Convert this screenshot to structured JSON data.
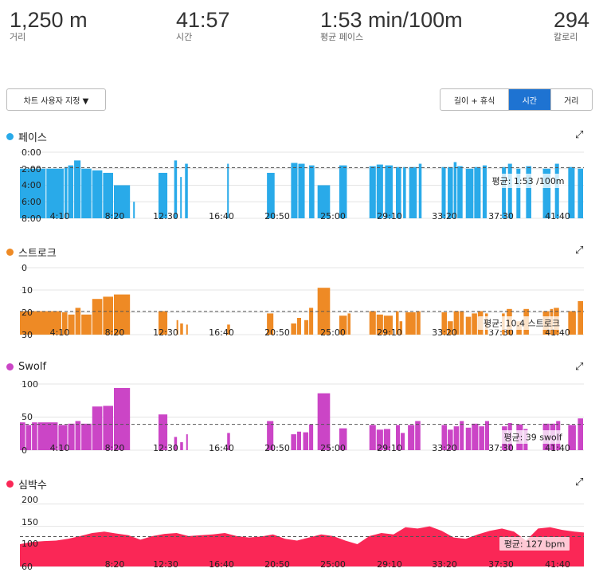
{
  "stats": [
    {
      "value": "1,250 m",
      "label": "거리"
    },
    {
      "value": "41:57",
      "label": "시간"
    },
    {
      "value": "1:53 min/100m",
      "label": "평균 페이스"
    },
    {
      "value": "294",
      "label": "칼로리"
    }
  ],
  "controls": {
    "custom_chart": "차트 사용자 지정 ▼",
    "segments": [
      "길이 + 휴식",
      "시간",
      "거리"
    ],
    "active_segment": "시간"
  },
  "x_tick_labels": [
    "4:10",
    "8:20",
    "12:30",
    "16:40",
    "20:50",
    "25:00",
    "29:10",
    "33:20",
    "37:30",
    "41:40"
  ],
  "chart_data": [
    {
      "type": "bar",
      "title": "페이스",
      "color": "#29aae9",
      "y_tick_labels": [
        "0:00",
        "2:00",
        "4:00",
        "6:00",
        "8:00"
      ],
      "ylim": [
        0,
        8
      ],
      "y_inverted": true,
      "avg_value": 1.88,
      "avg_label": "평균: 1:53 /100m",
      "x_unit": "min",
      "bars": [
        [
          0,
          2.2,
          2.0
        ],
        [
          2.2,
          3.7,
          2.0
        ],
        [
          3.7,
          4.0,
          1.8
        ],
        [
          4.0,
          4.5,
          1.6
        ],
        [
          4.5,
          5.1,
          1.0
        ],
        [
          5.1,
          6.0,
          2.0
        ],
        [
          6.0,
          6.9,
          2.2
        ],
        [
          6.9,
          7.8,
          2.5
        ],
        [
          7.8,
          9.2,
          4.0
        ],
        [
          9.4,
          9.5,
          6.0
        ],
        [
          11.5,
          12.3,
          2.5
        ],
        [
          12.8,
          13.1,
          1.0
        ],
        [
          13.3,
          13.4,
          3.0
        ],
        [
          13.7,
          14.0,
          1.4
        ],
        [
          17.2,
          17.4,
          1.4
        ],
        [
          20.5,
          21.2,
          2.5
        ],
        [
          22.5,
          23.1,
          1.3
        ],
        [
          23.1,
          23.7,
          1.4
        ],
        [
          24.0,
          24.5,
          1.6
        ],
        [
          24.7,
          25.8,
          4.0
        ],
        [
          26.5,
          27.2,
          1.6
        ],
        [
          29.0,
          29.6,
          1.7
        ],
        [
          29.6,
          30.2,
          1.5
        ],
        [
          30.3,
          31.0,
          1.6
        ],
        [
          31.2,
          31.7,
          1.8
        ],
        [
          31.8,
          32.1,
          1.8
        ],
        [
          32.3,
          33.0,
          1.8
        ],
        [
          33.1,
          33.4,
          1.4
        ],
        [
          35.0,
          35.4,
          1.8
        ],
        [
          35.5,
          36.0,
          1.8
        ],
        [
          36.0,
          36.3,
          1.2
        ],
        [
          36.3,
          36.8,
          1.7
        ],
        [
          37.0,
          37.7,
          2.0
        ],
        [
          37.7,
          38.3,
          1.8
        ],
        [
          38.4,
          38.8,
          1.6
        ],
        [
          40.0,
          40.4,
          1.8
        ],
        [
          40.5,
          40.9,
          1.4
        ],
        [
          41.2,
          41.6,
          2.0
        ],
        [
          42.0,
          42.5,
          1.7
        ],
        [
          43.4,
          44.1,
          2.0
        ],
        [
          44.4,
          44.8,
          1.4
        ],
        [
          45.5,
          46.1,
          1.8
        ],
        [
          46.3,
          46.8,
          2.0
        ]
      ]
    },
    {
      "type": "bar",
      "title": "스트로크",
      "color": "#ee8a25",
      "y_tick_labels": [
        "0",
        "10",
        "20",
        "30"
      ],
      "ylim": [
        0,
        30
      ],
      "avg_value": 10.4,
      "avg_label": "평균: 10.4 스트로크",
      "x_unit": "min",
      "bars": [
        [
          0,
          3.5,
          10.5
        ],
        [
          3.5,
          4.0,
          10
        ],
        [
          4.0,
          4.6,
          9
        ],
        [
          4.6,
          5.1,
          12
        ],
        [
          5.1,
          6.0,
          9
        ],
        [
          6.0,
          6.9,
          16
        ],
        [
          6.9,
          7.8,
          17
        ],
        [
          7.8,
          9.2,
          18
        ],
        [
          11.5,
          12.3,
          10.5
        ],
        [
          13.0,
          13.2,
          6.5
        ],
        [
          13.3,
          13.6,
          5
        ],
        [
          13.8,
          14.0,
          4.5
        ],
        [
          17.2,
          17.5,
          4.5
        ],
        [
          20.5,
          21.1,
          9.5
        ],
        [
          22.5,
          23.0,
          5
        ],
        [
          23.0,
          23.4,
          7.5
        ],
        [
          23.6,
          24.0,
          6.5
        ],
        [
          24.0,
          24.4,
          12
        ],
        [
          24.7,
          25.8,
          21
        ],
        [
          26.5,
          27.2,
          8.5
        ],
        [
          27.2,
          27.5,
          9.5
        ],
        [
          29.0,
          29.6,
          10.5
        ],
        [
          29.6,
          30.2,
          9
        ],
        [
          30.2,
          31.0,
          8.5
        ],
        [
          31.2,
          31.5,
          10.5
        ],
        [
          31.5,
          31.8,
          6
        ],
        [
          32.0,
          32.9,
          10
        ],
        [
          32.9,
          33.3,
          10.5
        ],
        [
          35.0,
          35.5,
          10
        ],
        [
          35.5,
          36.0,
          6
        ],
        [
          36.0,
          36.5,
          10.5
        ],
        [
          36.5,
          36.9,
          10.5
        ],
        [
          37.0,
          37.5,
          8
        ],
        [
          37.5,
          38.0,
          9.5
        ],
        [
          38.0,
          38.5,
          10.5
        ],
        [
          38.6,
          38.9,
          9.5
        ],
        [
          40.0,
          40.3,
          9.5
        ],
        [
          40.4,
          40.9,
          11.5
        ],
        [
          41.2,
          41.7,
          6
        ],
        [
          41.8,
          42.3,
          11.5
        ],
        [
          43.4,
          44.0,
          10.5
        ],
        [
          44.0,
          44.3,
          11.5
        ],
        [
          44.3,
          44.8,
          12
        ],
        [
          45.5,
          46.2,
          10.5
        ],
        [
          46.3,
          46.8,
          15
        ]
      ]
    },
    {
      "type": "bar",
      "title": "Swolf",
      "color": "#cb45c6",
      "y_tick_labels": [
        "0",
        "50",
        "100"
      ],
      "ylim": [
        0,
        100
      ],
      "avg_value": 39,
      "avg_label": "평균: 39 swolf",
      "x_unit": "min",
      "bars": [
        [
          0,
          0.5,
          42
        ],
        [
          0.5,
          1.0,
          38
        ],
        [
          1.0,
          1.5,
          42
        ],
        [
          1.5,
          3.2,
          42
        ],
        [
          3.2,
          4.0,
          38
        ],
        [
          4.0,
          4.6,
          40
        ],
        [
          4.6,
          5.1,
          44
        ],
        [
          5.1,
          6.0,
          40
        ],
        [
          6.0,
          6.9,
          66
        ],
        [
          6.9,
          7.8,
          67
        ],
        [
          7.8,
          9.2,
          94
        ],
        [
          11.5,
          12.3,
          54
        ],
        [
          12.8,
          13.1,
          20
        ],
        [
          13.3,
          13.6,
          12
        ],
        [
          13.8,
          14.0,
          24
        ],
        [
          17.2,
          17.5,
          26
        ],
        [
          20.5,
          21.1,
          44
        ],
        [
          22.5,
          23.0,
          24
        ],
        [
          23.0,
          23.4,
          28
        ],
        [
          23.5,
          24.0,
          27
        ],
        [
          24.0,
          24.4,
          39
        ],
        [
          24.7,
          25.8,
          86
        ],
        [
          26.5,
          27.2,
          33
        ],
        [
          29.0,
          29.6,
          38
        ],
        [
          29.6,
          30.2,
          31
        ],
        [
          30.2,
          30.8,
          32
        ],
        [
          31.2,
          31.6,
          38
        ],
        [
          31.6,
          32.0,
          26
        ],
        [
          32.2,
          32.8,
          38
        ],
        [
          32.8,
          33.3,
          44
        ],
        [
          35.0,
          35.5,
          38
        ],
        [
          35.5,
          36.0,
          31
        ],
        [
          36.0,
          36.5,
          36
        ],
        [
          36.5,
          36.9,
          44
        ],
        [
          37.0,
          37.5,
          34
        ],
        [
          37.5,
          38.1,
          40
        ],
        [
          38.1,
          38.6,
          36
        ],
        [
          38.6,
          39.0,
          44
        ],
        [
          40.0,
          40.5,
          36
        ],
        [
          40.5,
          40.9,
          41
        ],
        [
          41.2,
          41.8,
          39
        ],
        [
          41.8,
          42.2,
          32
        ],
        [
          43.4,
          44.0,
          40
        ],
        [
          44.0,
          44.5,
          40
        ],
        [
          44.5,
          44.9,
          44
        ],
        [
          45.5,
          46.2,
          38
        ],
        [
          46.3,
          46.8,
          48
        ]
      ]
    },
    {
      "type": "area",
      "title": "심박수",
      "color": "#fa2756",
      "y_tick_labels": [
        "60",
        "100",
        "150",
        "200"
      ],
      "ylim": [
        60,
        210
      ],
      "avg_value": 127,
      "avg_label": "평균: 127 bpm",
      "x_unit": "min",
      "x": [
        0,
        1,
        2,
        3,
        4,
        5,
        6,
        7,
        8,
        9,
        10,
        11,
        12,
        13,
        14,
        15,
        16,
        17,
        18,
        19,
        20,
        21,
        22,
        23,
        24,
        25,
        26,
        27,
        28,
        29,
        30,
        31,
        32,
        33,
        34,
        35,
        36,
        37,
        38,
        39,
        40,
        41,
        42,
        43,
        44,
        45,
        46,
        46.8
      ],
      "y": [
        110,
        115,
        117,
        118,
        122,
        128,
        135,
        138,
        134,
        130,
        120,
        128,
        133,
        135,
        128,
        130,
        132,
        135,
        128,
        125,
        127,
        132,
        122,
        118,
        125,
        132,
        128,
        118,
        110,
        128,
        135,
        132,
        148,
        145,
        150,
        140,
        125,
        122,
        132,
        140,
        145,
        138,
        118,
        145,
        148,
        142,
        138,
        136
      ]
    }
  ]
}
